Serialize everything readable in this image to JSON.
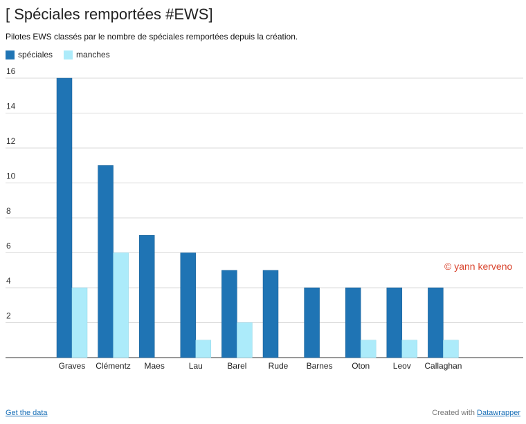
{
  "header": {
    "title": "[ Spéciales remportées #EWS]",
    "subtitle": "Pilotes EWS classés par le nombre de spéciales remportées depuis la création."
  },
  "watermark": "© yann kerveno",
  "footer": {
    "get_data": "Get the data",
    "created_with": "Created with",
    "datawrapper": "Datawrapper"
  },
  "colors": {
    "speciales": "#1f74b4",
    "manches": "#acebfa",
    "grid": "#d9d9d9",
    "axis": "#333333"
  },
  "chart_data": {
    "type": "bar",
    "title": "[ Spéciales remportées #EWS]",
    "categories": [
      "Graves",
      "Clémentz",
      "Maes",
      "Lau",
      "Barel",
      "Rude",
      "Barnes",
      "Oton",
      "Leov",
      "Callaghan"
    ],
    "series": [
      {
        "name": "spéciales",
        "values": [
          16,
          11,
          7,
          6,
          5,
          5,
          4,
          4,
          4,
          4
        ]
      },
      {
        "name": "manches",
        "values": [
          4,
          6,
          0,
          1,
          2,
          0,
          0,
          1,
          1,
          1
        ]
      }
    ],
    "yticks": [
      2,
      4,
      6,
      8,
      10,
      12,
      14,
      16
    ],
    "ylim": [
      0,
      16
    ],
    "xlabel": "",
    "ylabel": "",
    "legend": "top-left",
    "grid": true
  }
}
